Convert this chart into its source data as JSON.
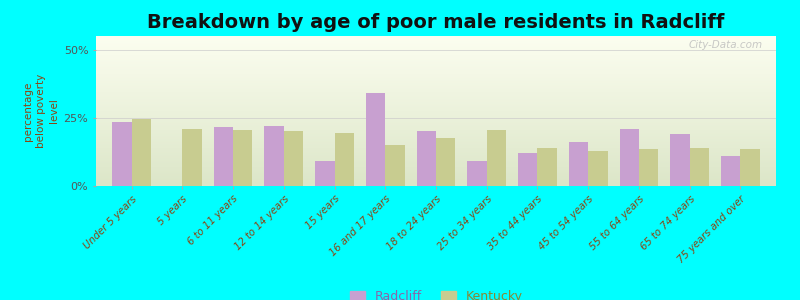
{
  "title": "Breakdown by age of poor male residents in Radcliff",
  "categories": [
    "Under 5 years",
    "5 years",
    "6 to 11 years",
    "12 to 14 years",
    "15 years",
    "16 and 17 years",
    "18 to 24 years",
    "25 to 34 years",
    "35 to 44 years",
    "45 to 54 years",
    "55 to 64 years",
    "65 to 74 years",
    "75 years and over"
  ],
  "radcliff_values": [
    23.5,
    0,
    21.5,
    22.0,
    9.0,
    34.0,
    20.0,
    9.0,
    12.0,
    16.0,
    21.0,
    19.0,
    11.0
  ],
  "kentucky_values": [
    24.5,
    21.0,
    20.5,
    20.0,
    19.5,
    15.0,
    17.5,
    20.5,
    14.0,
    13.0,
    13.5,
    14.0,
    13.5
  ],
  "radcliff_color": "#c8a0d0",
  "kentucky_color": "#c8cc90",
  "ylabel": "percentage\nbelow poverty\nlevel",
  "ylim": [
    0,
    55
  ],
  "yticks": [
    0,
    25,
    50
  ],
  "ytick_labels": [
    "0%",
    "25%",
    "50%"
  ],
  "background_color": "#00ffff",
  "title_fontsize": 14,
  "legend_labels": [
    "Radcliff",
    "Kentucky"
  ],
  "bar_width": 0.38
}
